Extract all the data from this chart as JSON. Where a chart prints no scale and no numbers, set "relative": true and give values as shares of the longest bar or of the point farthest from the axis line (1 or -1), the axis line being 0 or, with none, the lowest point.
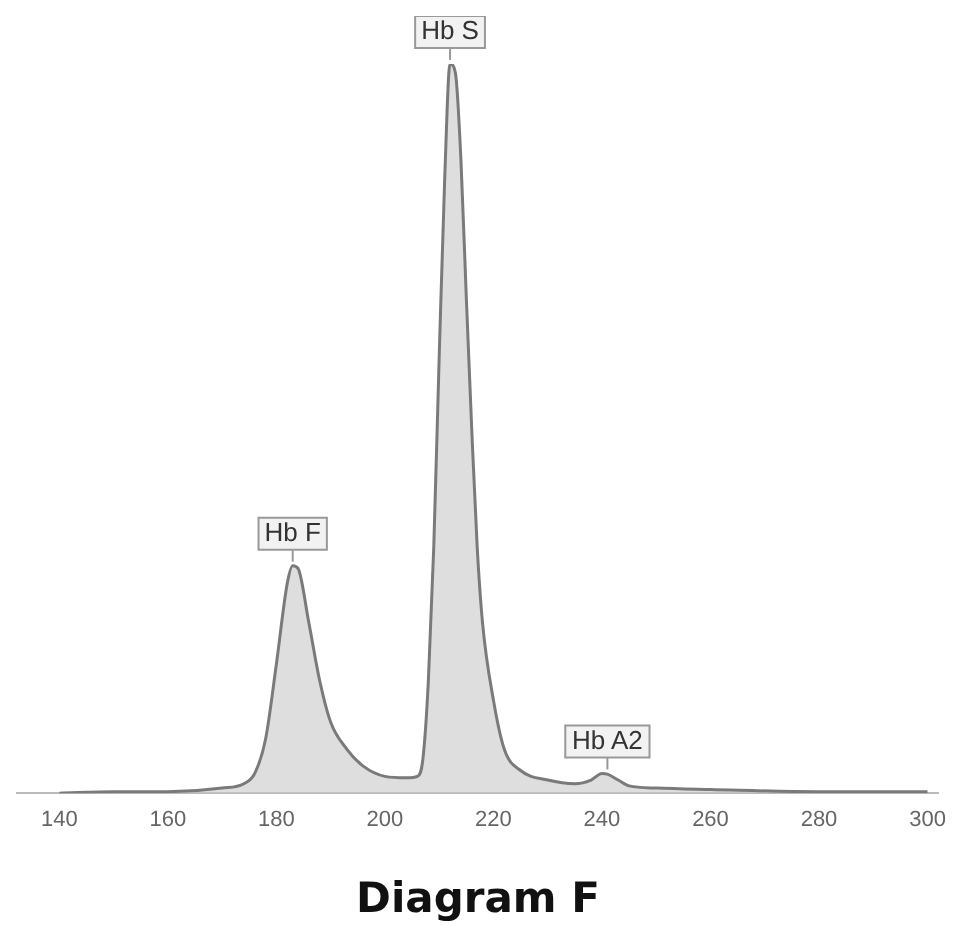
{
  "chart_data": {
    "type": "area",
    "title": "Diagram F",
    "relative": true,
    "x": [
      140,
      150,
      160,
      170,
      174,
      176,
      178,
      180,
      182,
      183,
      184,
      186,
      188,
      190,
      193,
      196,
      200,
      204,
      206,
      207,
      208,
      209,
      210,
      211,
      212,
      213,
      214,
      215,
      216,
      217,
      218,
      220,
      222,
      225,
      230,
      235,
      238,
      240,
      241,
      243,
      245,
      250,
      260,
      280,
      300
    ],
    "series": [
      {
        "color": "#7a7a7a",
        "values": [
          0.003,
          0.005,
          0.005,
          0.01,
          0.016,
          0.03,
          0.077,
          0.18,
          0.29,
          0.314,
          0.31,
          0.235,
          0.156,
          0.1,
          0.063,
          0.04,
          0.026,
          0.024,
          0.026,
          0.05,
          0.156,
          0.34,
          0.6,
          0.84,
          1,
          0.987,
          0.87,
          0.68,
          0.5,
          0.34,
          0.235,
          0.13,
          0.063,
          0.034,
          0.021,
          0.016,
          0.021,
          0.03,
          0.029,
          0.021,
          0.013,
          0.01,
          0.008,
          0.005,
          0.005
        ]
      }
    ],
    "xlim": [
      132,
      302
    ],
    "xticks": [
      140,
      160,
      180,
      200,
      220,
      240,
      260,
      280,
      300
    ],
    "annotations": [
      {
        "text": "Hb F",
        "x": 183,
        "y": 0.314
      },
      {
        "text": "Hb S",
        "x": 212,
        "y": 1
      },
      {
        "text": "Hb A2",
        "x": 241,
        "y": 0.03
      }
    ],
    "grid": false,
    "legend": false,
    "marker": "none",
    "line_style": "solid"
  }
}
